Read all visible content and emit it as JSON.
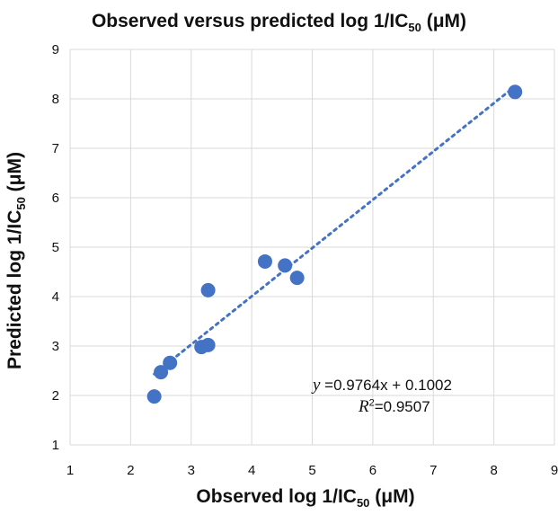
{
  "chart_data": {
    "type": "scatter",
    "title": {
      "main": "Observed versus predicted log 1/IC",
      "sub": "50",
      "unit": " (μM)"
    },
    "xlabel": {
      "main": "Observed log 1/IC",
      "sub": "50",
      "unit": " (μM)"
    },
    "ylabel": {
      "main": "Predicted log 1/IC",
      "sub": "50",
      "unit": " (μM)"
    },
    "xlim": [
      1,
      9
    ],
    "ylim": [
      1,
      9
    ],
    "xticks": [
      "1",
      "2",
      "3",
      "4",
      "5",
      "6",
      "7",
      "8",
      "9"
    ],
    "yticks": [
      "1",
      "2",
      "3",
      "4",
      "5",
      "6",
      "7",
      "8",
      "9"
    ],
    "grid": true,
    "point_color": "#4472c4",
    "trendline_color": "#4472c4",
    "points": [
      {
        "x": 2.39,
        "y": 1.98
      },
      {
        "x": 2.5,
        "y": 2.47
      },
      {
        "x": 2.65,
        "y": 2.66
      },
      {
        "x": 3.17,
        "y": 2.98
      },
      {
        "x": 3.28,
        "y": 3.02
      },
      {
        "x": 3.28,
        "y": 4.13
      },
      {
        "x": 4.22,
        "y": 4.71
      },
      {
        "x": 4.55,
        "y": 4.63
      },
      {
        "x": 4.75,
        "y": 4.38
      },
      {
        "x": 8.35,
        "y": 8.14
      }
    ],
    "trendline": {
      "slope": 0.9764,
      "intercept": 0.1002,
      "x_start": 2.39,
      "x_end": 8.35
    },
    "equation": {
      "y_var": "y",
      "rest": " =0.9764x + 0.1002"
    },
    "r2": {
      "var": "R",
      "exp": "2",
      "rest": "=0.9507"
    }
  }
}
